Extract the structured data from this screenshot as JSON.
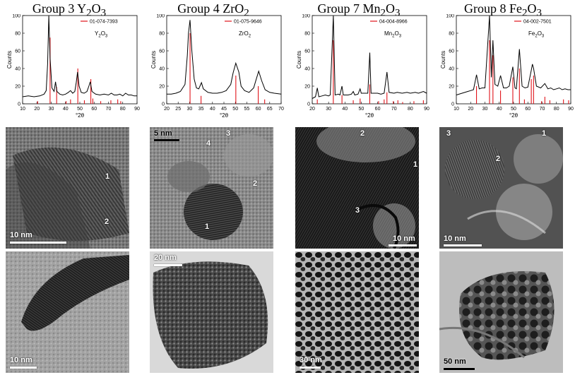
{
  "groups": [
    {
      "title_main": "Group 3 Y",
      "title_sub1": "2",
      "title_mid": "O",
      "title_sub2": "3",
      "legend_code": "01-074-7393",
      "legend_main": "Y",
      "legend_sub1": "2",
      "legend_mid": "O",
      "legend_sub2": "3",
      "hr_scale": "10 nm",
      "lr_scale": "10 nm",
      "hr_numbers": [
        "1",
        "2"
      ]
    },
    {
      "title_main": "Group 4 ZrO",
      "title_sub1": "2",
      "title_mid": "",
      "title_sub2": "",
      "legend_code": "01-075-9646",
      "legend_main": "ZrO",
      "legend_sub1": "2",
      "legend_mid": "",
      "legend_sub2": "",
      "hr_scale": "5 nm",
      "lr_scale": "20 nm",
      "hr_numbers": [
        "1",
        "2",
        "3",
        "4"
      ]
    },
    {
      "title_main": "Group 7 Mn",
      "title_sub1": "2",
      "title_mid": "O",
      "title_sub2": "3",
      "legend_code": "04-004-8966",
      "legend_main": "Mn",
      "legend_sub1": "2",
      "legend_mid": "O",
      "legend_sub2": "3",
      "hr_scale": "10 nm",
      "lr_scale": "30 nm",
      "hr_numbers": [
        "1",
        "2",
        "3"
      ]
    },
    {
      "title_main": "Group 8 Fe",
      "title_sub1": "2",
      "title_mid": "O",
      "title_sub2": "3",
      "legend_code": "04-002-7501",
      "legend_main": "Fe",
      "legend_sub1": "2",
      "legend_mid": "O",
      "legend_sub2": "3",
      "hr_scale": "10 nm",
      "lr_scale": "50 nm",
      "hr_numbers": [
        "1",
        "2",
        "3"
      ]
    }
  ],
  "colors": {
    "measured": "#000000",
    "reference": "#e0141b"
  },
  "chart_data": [
    {
      "type": "line",
      "ylabel": "Counts",
      "xlabel": "°2θ",
      "xlim": [
        10,
        90
      ],
      "ylim": [
        0,
        100
      ],
      "xticks": [
        10,
        20,
        30,
        40,
        50,
        60,
        70,
        80,
        90
      ],
      "yticks": [
        0,
        20,
        40,
        60,
        80,
        100
      ],
      "series": [
        {
          "name": "measured",
          "x": [
            10,
            14,
            18,
            22,
            25,
            26.5,
            27.5,
            28.3,
            29.2,
            30.5,
            32,
            33,
            34,
            36,
            38,
            40,
            42,
            43.5,
            45,
            46.5,
            47.5,
            48.4,
            49.5,
            51,
            53,
            55,
            56.3,
            57.3,
            58.5,
            61,
            64,
            67,
            70,
            72,
            74,
            76,
            78,
            80,
            82,
            84,
            86,
            88,
            90
          ],
          "y": [
            8,
            9,
            8,
            9,
            11,
            15,
            45,
            100,
            52,
            18,
            14,
            25,
            14,
            11,
            10,
            11,
            13,
            15,
            12,
            14,
            24,
            36,
            20,
            13,
            12,
            14,
            20,
            25,
            14,
            11,
            10,
            11,
            10,
            12,
            10,
            10,
            11,
            9,
            12,
            10,
            10,
            9,
            9
          ]
        },
        {
          "name": "01-074-7393",
          "x": [
            20.5,
            29.2,
            33.8,
            40.4,
            43.5,
            48.6,
            53.2,
            57.7,
            59.1,
            64.6,
            71.7,
            76.5,
            78.6
          ],
          "y": [
            3,
            75,
            19,
            3,
            5,
            40,
            4,
            28,
            6,
            3,
            4,
            5,
            3
          ]
        }
      ]
    },
    {
      "type": "line",
      "ylabel": "Counts",
      "xlabel": "°2θ",
      "xlim": [
        20,
        70
      ],
      "ylim": [
        0,
        100
      ],
      "xticks": [
        20,
        25,
        30,
        35,
        40,
        45,
        50,
        55,
        60,
        65,
        70
      ],
      "yticks": [
        0,
        20,
        40,
        60,
        80,
        100
      ],
      "series": [
        {
          "name": "measured",
          "x": [
            20,
            22,
            24,
            26,
            28,
            29,
            29.5,
            30.2,
            31,
            32,
            33,
            34,
            35.2,
            36,
            38,
            40,
            42,
            44,
            46,
            48,
            49,
            50.2,
            51.5,
            52.5,
            54,
            56,
            58,
            59,
            60.2,
            61.5,
            63,
            65,
            67,
            70
          ],
          "y": [
            11,
            11,
            12,
            14,
            22,
            55,
            80,
            95,
            60,
            28,
            18,
            17,
            24,
            17,
            13,
            12,
            12,
            13,
            15,
            22,
            35,
            46,
            36,
            20,
            15,
            13,
            18,
            27,
            37,
            26,
            16,
            13,
            12,
            11
          ]
        },
        {
          "name": "01-075-9646",
          "x": [
            30.2,
            35.0,
            50.2,
            60.0,
            62.8
          ],
          "y": [
            80,
            9,
            32,
            20,
            5
          ]
        }
      ]
    },
    {
      "type": "line",
      "ylabel": "Counts",
      "xlabel": "°2θ",
      "xlim": [
        20,
        90
      ],
      "ylim": [
        0,
        100
      ],
      "xticks": [
        20,
        30,
        40,
        50,
        60,
        70,
        80,
        90
      ],
      "yticks": [
        0,
        20,
        40,
        60,
        80,
        100
      ],
      "series": [
        {
          "name": "measured",
          "x": [
            20,
            22,
            23.1,
            24,
            26,
            28,
            30,
            31,
            32.9,
            34,
            36,
            37,
            38.2,
            39,
            42,
            44,
            45.1,
            46,
            48,
            49.3,
            50,
            52,
            54,
            55.2,
            56,
            58,
            60,
            62,
            64,
            65.7,
            67,
            70,
            72,
            75,
            78,
            80,
            83,
            85,
            88,
            90
          ],
          "y": [
            6,
            8,
            18,
            8,
            9,
            10,
            9,
            10,
            100,
            10,
            11,
            10,
            20,
            10,
            10,
            11,
            14,
            10,
            11,
            17,
            12,
            12,
            12,
            58,
            12,
            12,
            12,
            11,
            12,
            36,
            13,
            12,
            13,
            12,
            13,
            12,
            13,
            12,
            14,
            12
          ]
        },
        {
          "name": "04-004-8966",
          "x": [
            23.1,
            32.9,
            38.2,
            45.1,
            49.3,
            55.2,
            60.6,
            64.0,
            65.7,
            69.6,
            72.4,
            75.3,
            82.2,
            88.0
          ],
          "y": [
            5,
            72,
            10,
            4,
            6,
            22,
            3,
            5,
            13,
            3,
            4,
            2,
            3,
            4
          ]
        }
      ]
    },
    {
      "type": "line",
      "ylabel": "Counts",
      "xlabel": "°2θ",
      "xlim": [
        10,
        90
      ],
      "ylim": [
        0,
        100
      ],
      "xticks": [
        10,
        20,
        30,
        40,
        50,
        60,
        70,
        80,
        90
      ],
      "yticks": [
        0,
        20,
        40,
        60,
        80,
        100
      ],
      "series": [
        {
          "name": "measured",
          "x": [
            10,
            14,
            18,
            20,
            22,
            24.1,
            26,
            28,
            30,
            33.2,
            34.5,
            35.6,
            37,
            39,
            40.9,
            43,
            45,
            47,
            49.5,
            51,
            52,
            54.1,
            56,
            58,
            60,
            62.4,
            63.2,
            64.0,
            66,
            69,
            71.9,
            74,
            76,
            78,
            80,
            82,
            84,
            86,
            88,
            90
          ],
          "y": [
            10,
            12,
            14,
            15,
            16,
            33,
            17,
            18,
            18,
            100,
            30,
            72,
            22,
            20,
            32,
            18,
            18,
            20,
            42,
            18,
            17,
            62,
            20,
            18,
            19,
            38,
            45,
            40,
            20,
            18,
            23,
            17,
            18,
            16,
            17,
            18,
            16,
            17,
            16,
            16
          ]
        },
        {
          "name": "04-002-7501",
          "x": [
            24.1,
            33.2,
            35.6,
            40.9,
            49.5,
            54.1,
            57.6,
            62.4,
            64.0,
            69.6,
            71.9,
            75.4,
            84.9,
            88.5
          ],
          "y": [
            20,
            72,
            55,
            15,
            30,
            40,
            5,
            28,
            32,
            3,
            8,
            4,
            5,
            4
          ]
        }
      ]
    }
  ]
}
